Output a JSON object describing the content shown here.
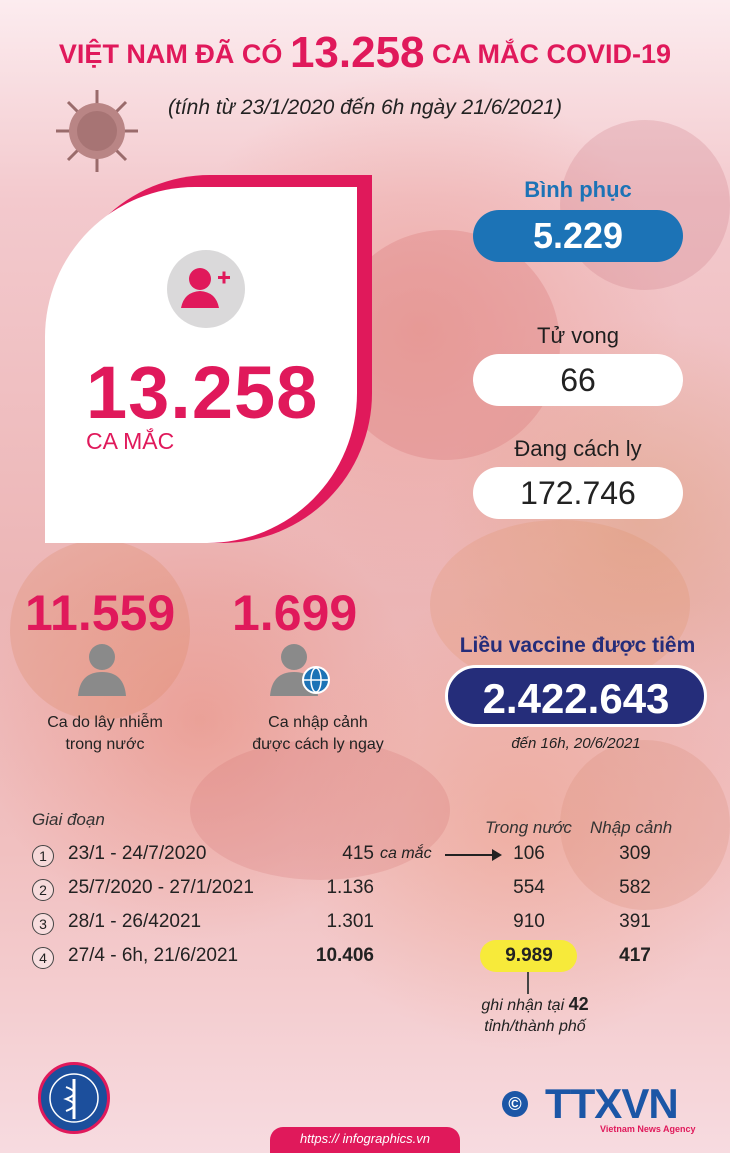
{
  "header": {
    "title_prefix": "VIỆT NAM ĐÃ CÓ",
    "title_number": "13.258",
    "title_suffix": "CA MẮC COVID-19",
    "subtitle": "(tính từ 23/1/2020 đến 6h ngày 21/6/2021)"
  },
  "total": {
    "value": "13.258",
    "label": "CA MẮC"
  },
  "recovered": {
    "label": "Bình phục",
    "value": "5.229"
  },
  "deaths": {
    "label": "Tử vong",
    "value": "66"
  },
  "quarantine": {
    "label": "Đang cách ly",
    "value": "172.746"
  },
  "domestic": {
    "value": "11.559",
    "caption_line1": "Ca do lây nhiễm",
    "caption_line2": "trong nước"
  },
  "imported": {
    "value": "1.699",
    "caption_line1": "Ca nhập cảnh",
    "caption_line2": "được cách ly ngay"
  },
  "vaccine": {
    "label": "Liều  vaccine được tiêm",
    "value": "2.422.643",
    "date": "đến 16h, 20/6/2021"
  },
  "table": {
    "period_header": "Giai đoạn",
    "domestic_header": "Trong nước",
    "imported_header": "Nhập cảnh",
    "case_word": "ca mắc",
    "rows": [
      {
        "num": "1",
        "period": "23/1 - 24/7/2020",
        "total": "415",
        "domestic": "106",
        "imported": "309"
      },
      {
        "num": "2",
        "period": "25/7/2020 - 27/1/2021",
        "total": "1.136",
        "domestic": "554",
        "imported": "582"
      },
      {
        "num": "3",
        "period": "28/1 - 26/42021",
        "total": "1.301",
        "domestic": "910",
        "imported": "391"
      },
      {
        "num": "4",
        "period": "27/4 - 6h, 21/6/2021",
        "total": "10.406",
        "domestic": "9.989",
        "imported": "417"
      }
    ],
    "note_prefix": "ghi nhận tại",
    "note_number": "42",
    "note_suffix": "tỉnh/thành phố"
  },
  "footer": {
    "agency": "TTXVN",
    "agency_sub": "Vietnam News Agency",
    "copyright": "©",
    "url": "https:// infographics.vn"
  },
  "colors": {
    "accent": "#e0195b",
    "blue": "#1c73b6",
    "navy": "#252d7a",
    "highlight": "#f7ea3a"
  }
}
